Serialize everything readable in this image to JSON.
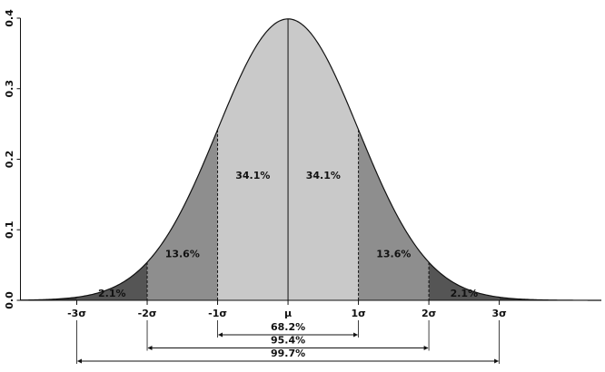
{
  "chart_data": {
    "type": "normal",
    "xlim": [
      -3.8,
      4.45
    ],
    "ylim": [
      0,
      0.4
    ],
    "yticks": [
      {
        "value": 0,
        "label": "0.0"
      },
      0.1,
      0.2,
      0.3,
      0.4
    ],
    "xticks": [
      {
        "value": -3,
        "label": "-3σ"
      },
      {
        "value": -2,
        "label": "-2σ"
      },
      {
        "value": -1,
        "label": "-1σ"
      },
      {
        "value": 0,
        "label": "μ"
      },
      {
        "value": 1,
        "label": "1σ"
      },
      {
        "value": 2,
        "label": "2σ"
      },
      {
        "value": 3,
        "label": "3σ"
      }
    ],
    "regions": {
      "bins": [
        -3,
        -2,
        -1,
        0,
        1,
        2,
        3
      ],
      "values": [
        2.1,
        13.6,
        34.1,
        34.1,
        13.6,
        2.1
      ],
      "value_labels": [
        "2.1%",
        "13.6%",
        "34.1%",
        "34.1%",
        "13.6%",
        "2.1%"
      ],
      "colors": [
        "#555555",
        "#8e8e8e",
        "#c9c9c9",
        "#c9c9c9",
        "#8e8e8e",
        "#555555"
      ]
    },
    "tail_color": "#3a3a3a",
    "intervals": [
      {
        "from": -1,
        "to": 1,
        "value": 68.2,
        "value_label": "68.2%"
      },
      {
        "from": -2,
        "to": 2,
        "value": 95.4,
        "value_label": "95.4%"
      },
      {
        "from": -3,
        "to": 3,
        "value": 99.7,
        "value_label": "99.7%"
      }
    ]
  }
}
